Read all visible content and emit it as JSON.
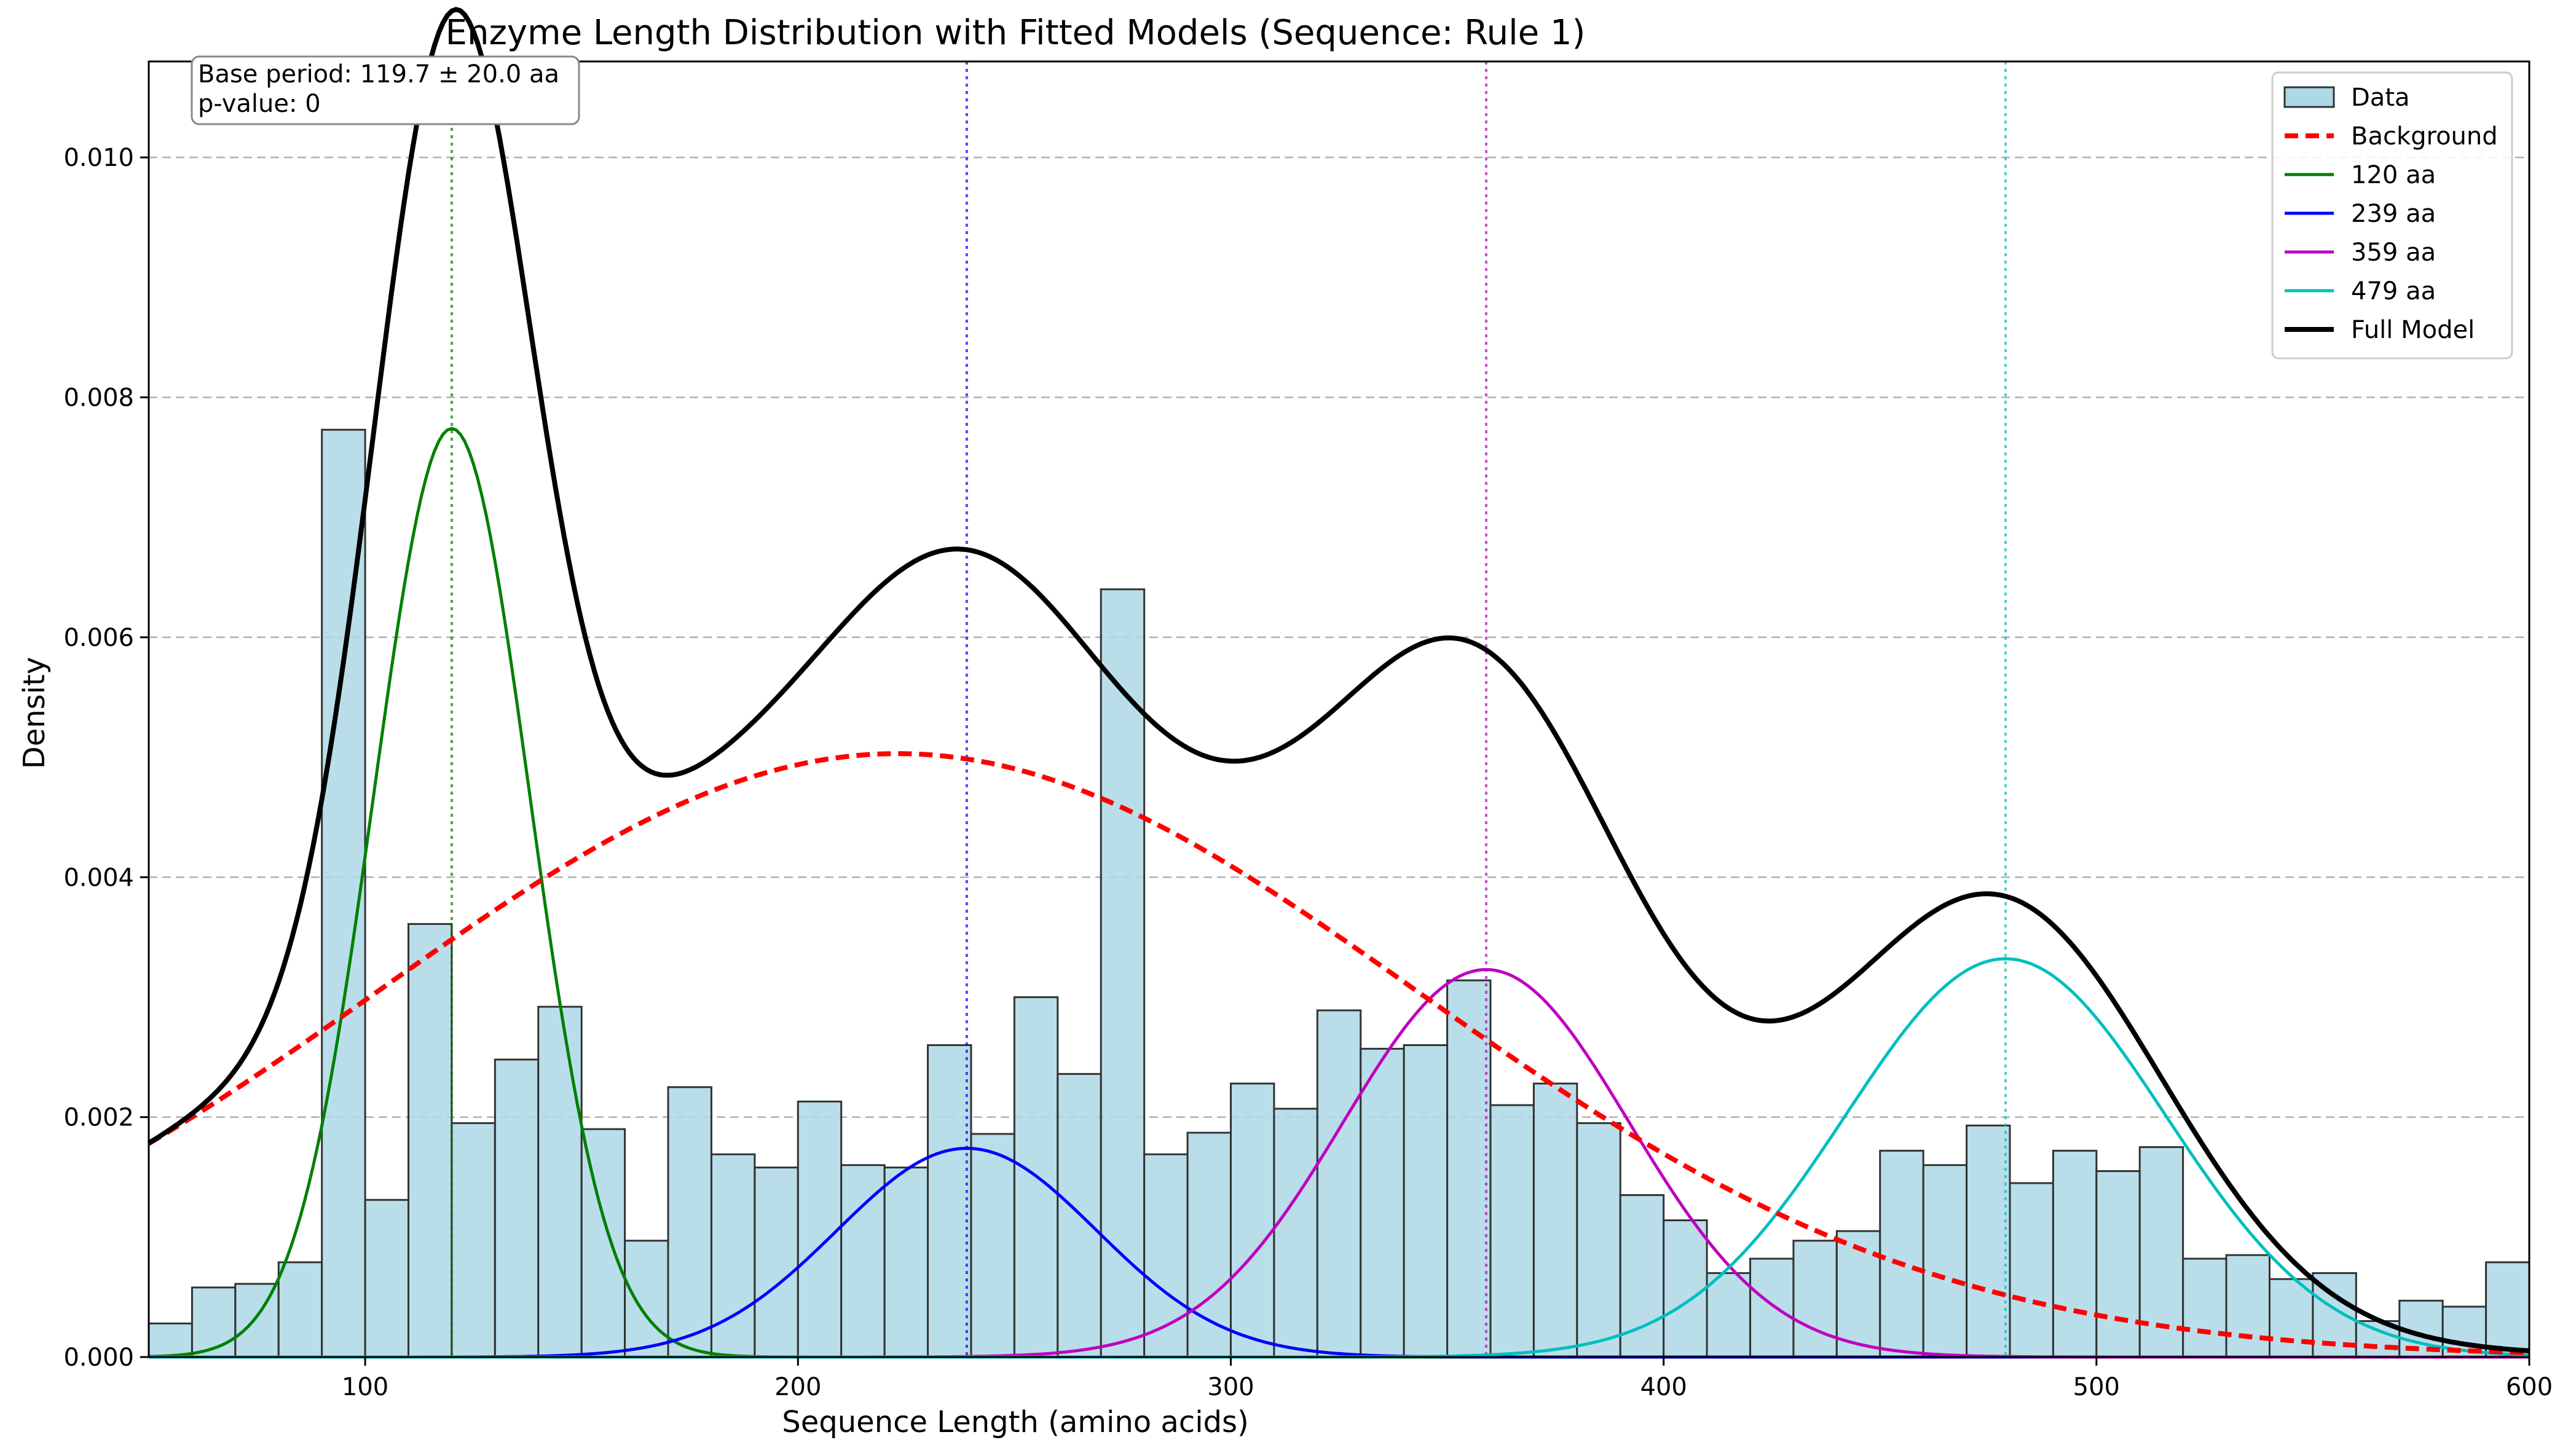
{
  "chart_data": {
    "type": "bar",
    "title": "Enzyme Length Distribution with Fitted Models (Sequence: Rule 1)",
    "xlabel": "Sequence Length (amino acids)",
    "ylabel": "Density",
    "xlim": [
      50,
      600
    ],
    "ylim": [
      0,
      0.0108
    ],
    "x_ticks": [
      100,
      200,
      300,
      400,
      500,
      600
    ],
    "y_ticks": [
      0.0,
      0.002,
      0.004,
      0.006,
      0.008,
      0.01
    ],
    "x_tick_labels": [
      "100",
      "200",
      "300",
      "400",
      "500",
      "600"
    ],
    "y_tick_labels": [
      "0.000",
      "0.002",
      "0.004",
      "0.006",
      "0.008",
      "0.010"
    ],
    "grid": "y-dashed",
    "legend_position": "top-right",
    "annotation": {
      "line1": "Base period: 119.7 ± 20.0 aa",
      "line2": "p-value: 0"
    },
    "histogram": {
      "name": "Data",
      "bin_start": 50,
      "bin_width": 10,
      "values": [
        0.00028,
        0.00058,
        0.00061,
        0.00079,
        0.00773,
        0.00131,
        0.00361,
        0.00195,
        0.00248,
        0.00292,
        0.0019,
        0.00097,
        0.00225,
        0.00169,
        0.00158,
        0.00213,
        0.0016,
        0.00158,
        0.0026,
        0.00186,
        0.003,
        0.00236,
        0.0064,
        0.00169,
        0.00187,
        0.00228,
        0.00207,
        0.00289,
        0.00257,
        0.0026,
        0.00314,
        0.0021,
        0.00228,
        0.00195,
        0.00135,
        0.00114,
        0.0007,
        0.00082,
        0.00097,
        0.00105,
        0.00172,
        0.0016,
        0.00193,
        0.00145,
        0.00172,
        0.00155,
        0.00175,
        0.00082,
        0.00085,
        0.00065,
        0.0007,
        0.0003,
        0.00047,
        0.00042,
        0.00079
      ],
      "fill": "#add8e6",
      "edge": "#333333"
    },
    "background": {
      "name": "Background",
      "mean": 223,
      "sd": 120,
      "peak": 0.00503,
      "color": "#ff0000"
    },
    "components": [
      {
        "name": "120 aa",
        "mean": 120,
        "sd": 18,
        "peak": 0.00774,
        "color": "#008000"
      },
      {
        "name": "239 aa",
        "mean": 239,
        "sd": 30,
        "peak": 0.00174,
        "color": "#0000ff"
      },
      {
        "name": "359 aa",
        "mean": 359,
        "sd": 33,
        "peak": 0.00323,
        "color": "#bf00bf"
      },
      {
        "name": "479 aa",
        "mean": 479,
        "sd": 37,
        "peak": 0.00332,
        "color": "#00bfbf"
      }
    ],
    "full_model": {
      "name": "Full Model",
      "color": "#000000"
    }
  }
}
